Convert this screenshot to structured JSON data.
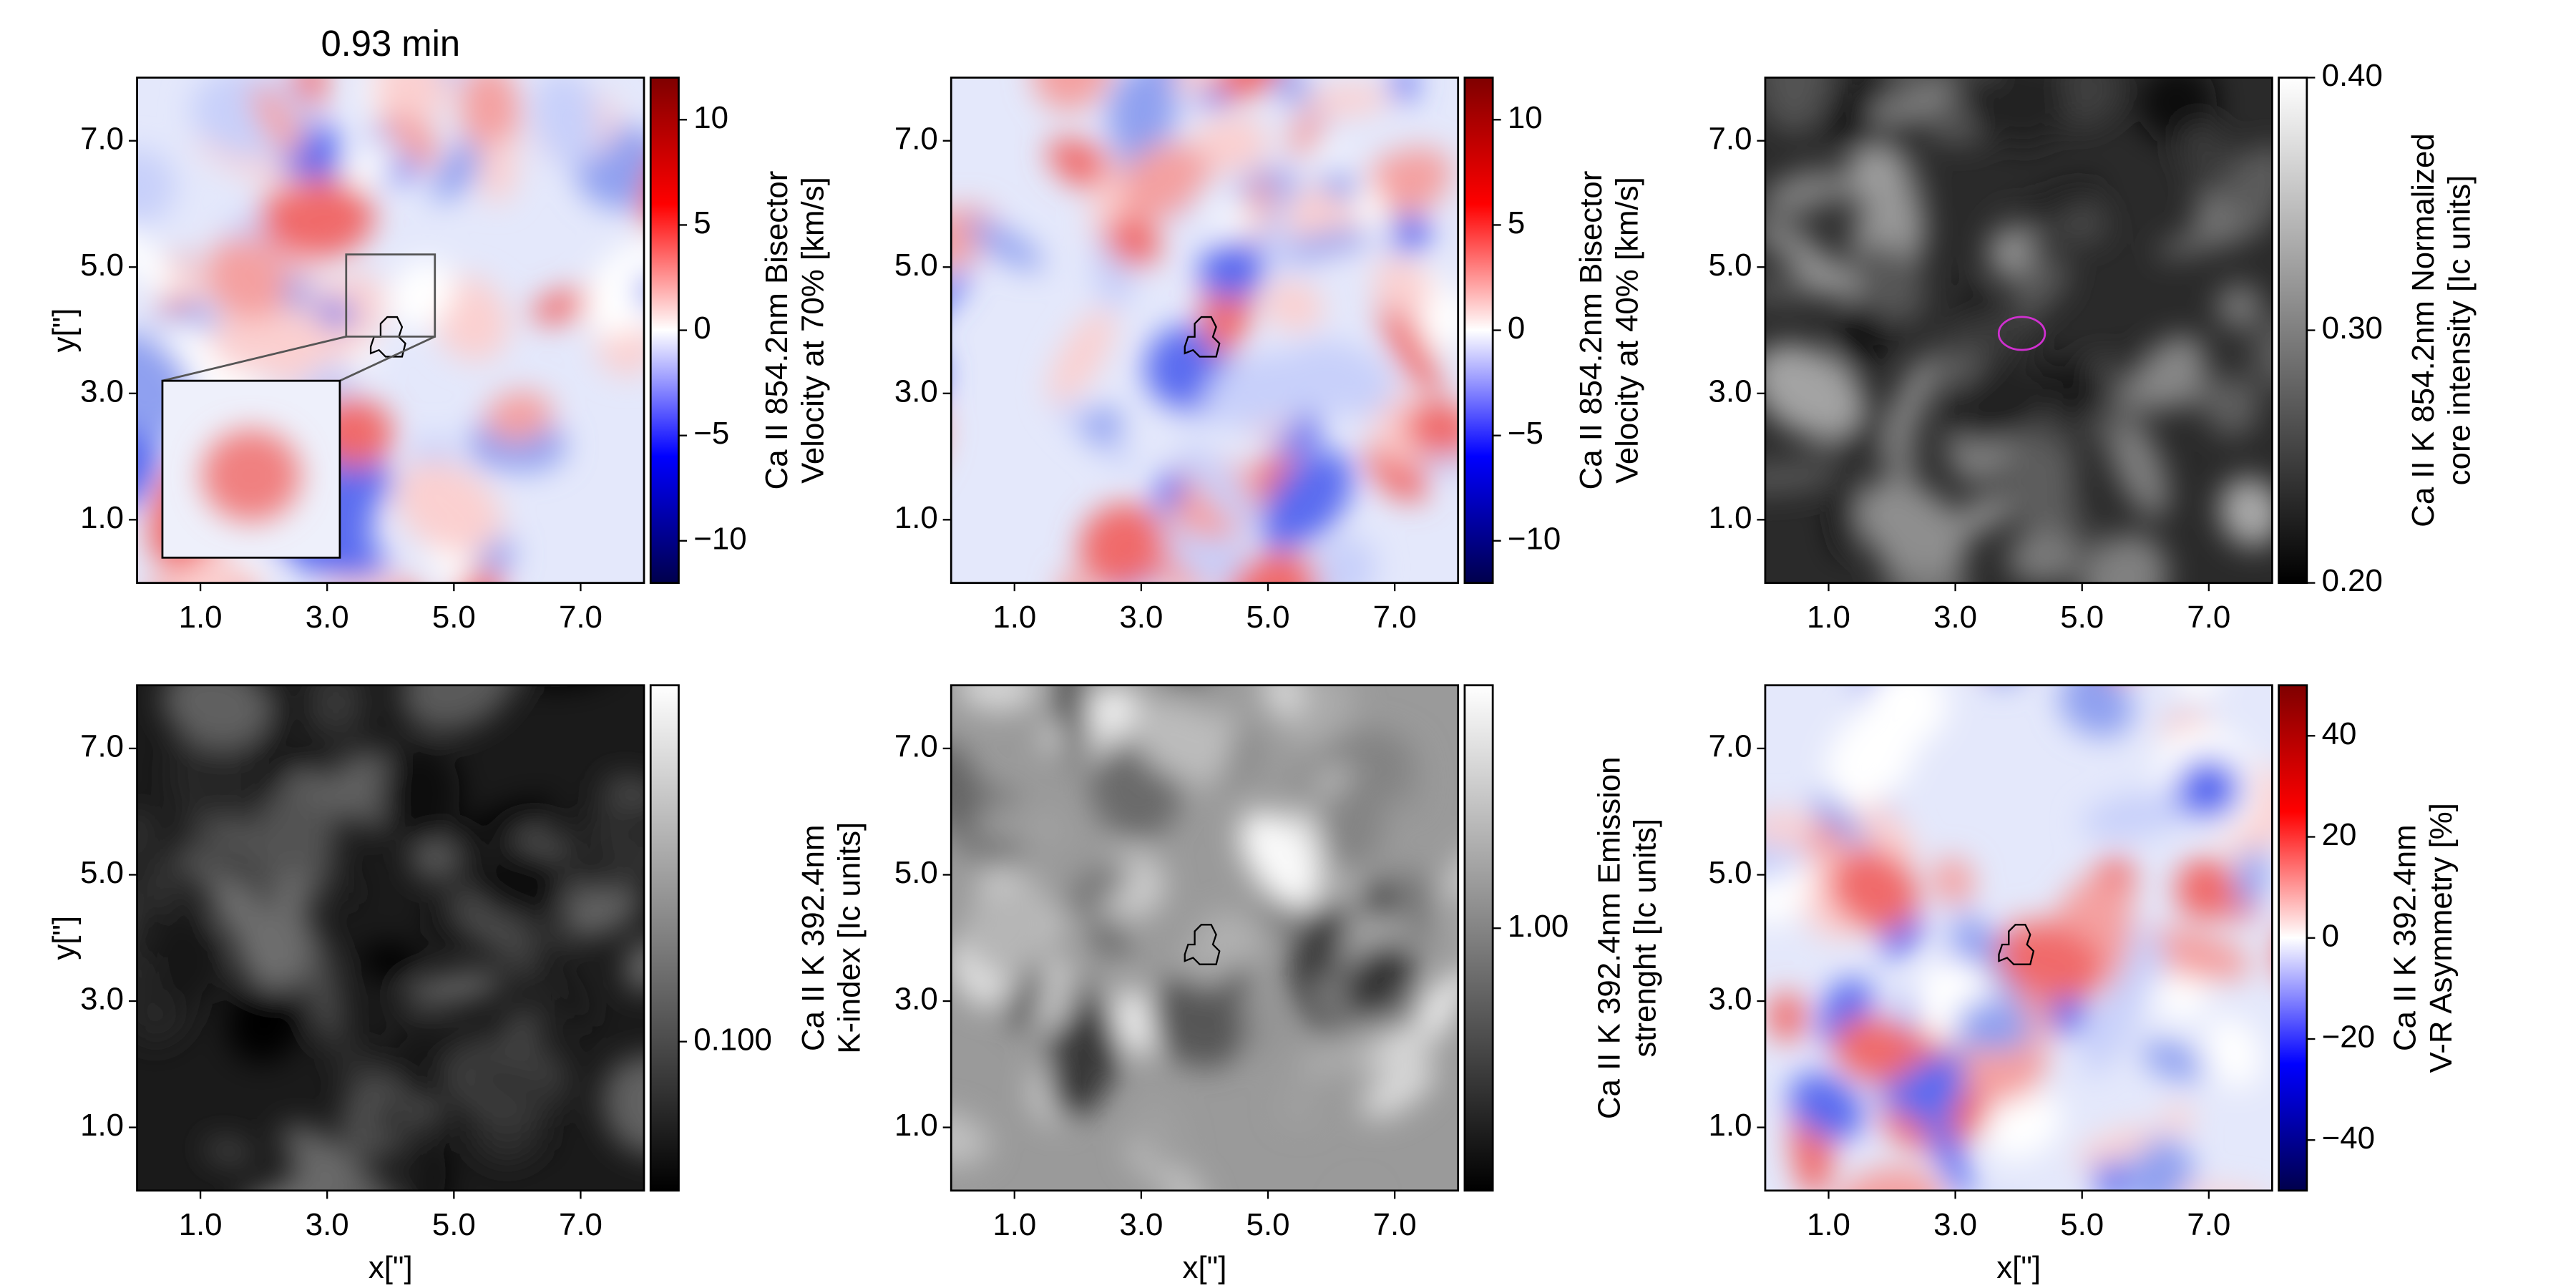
{
  "chart_data": [
    {
      "type": "heatmap",
      "title": "0.93 min",
      "ylabel": "y[\"]",
      "xlim": [
        0,
        8
      ],
      "ylim": [
        0,
        8
      ],
      "xticks": [
        {
          "value": 1,
          "label": "1.0"
        },
        {
          "value": 3,
          "label": "3.0"
        },
        {
          "value": 5,
          "label": "5.0"
        },
        {
          "value": 7,
          "label": "7.0"
        }
      ],
      "yticks": [
        {
          "value": 1,
          "label": "1.0"
        },
        {
          "value": 3,
          "label": "3.0"
        },
        {
          "value": 5,
          "label": "5.0"
        },
        {
          "value": 7,
          "label": "7.0"
        }
      ],
      "colormap": "seismic",
      "clim": [
        -12,
        12
      ],
      "cscale": "linear",
      "cticks": [
        {
          "value": -10,
          "label": "−10"
        },
        {
          "value": -5,
          "label": "−5"
        },
        0,
        5,
        10
      ],
      "clabel": [
        "Ca II 854.2nm Bisector",
        "Velocity at 70% [km/s]"
      ]
    },
    {
      "type": "heatmap",
      "xlim": [
        0,
        8
      ],
      "ylim": [
        0,
        8
      ],
      "xticks": [
        {
          "value": 1,
          "label": "1.0"
        },
        {
          "value": 3,
          "label": "3.0"
        },
        {
          "value": 5,
          "label": "5.0"
        },
        {
          "value": 7,
          "label": "7.0"
        }
      ],
      "yticks": [
        {
          "value": 1,
          "label": "1.0"
        },
        {
          "value": 3,
          "label": "3.0"
        },
        {
          "value": 5,
          "label": "5.0"
        },
        {
          "value": 7,
          "label": "7.0"
        }
      ],
      "colormap": "seismic",
      "clim": [
        -12,
        12
      ],
      "cscale": "linear",
      "cticks": [
        {
          "value": -10,
          "label": "−10"
        },
        {
          "value": -5,
          "label": "−5"
        },
        0,
        5,
        10
      ],
      "clabel": [
        "Ca II 854.2nm Bisector",
        "Velocity at 40% [km/s]"
      ]
    },
    {
      "type": "heatmap",
      "xlim": [
        0,
        8
      ],
      "ylim": [
        0,
        8
      ],
      "xticks": [
        {
          "value": 1,
          "label": "1.0"
        },
        {
          "value": 3,
          "label": "3.0"
        },
        {
          "value": 5,
          "label": "5.0"
        },
        {
          "value": 7,
          "label": "7.0"
        }
      ],
      "yticks": [
        {
          "value": 1,
          "label": "1.0"
        },
        {
          "value": 3,
          "label": "3.0"
        },
        {
          "value": 5,
          "label": "5.0"
        },
        {
          "value": 7,
          "label": "7.0"
        }
      ],
      "colormap": "gray",
      "clim": [
        0.2,
        0.4
      ],
      "cscale": "linear",
      "cticks": [
        {
          "value": 0.2,
          "label": "0.20"
        },
        {
          "value": 0.3,
          "label": "0.30"
        },
        {
          "value": 0.4,
          "label": "0.40"
        }
      ],
      "clabel": [
        "Ca II K 854.2nm Normalized",
        "core intensity [Ic units]"
      ]
    },
    {
      "type": "heatmap",
      "xlabel": "x[\"]",
      "ylabel": "y[\"]",
      "xlim": [
        0,
        8
      ],
      "ylim": [
        0,
        8
      ],
      "xticks": [
        {
          "value": 1,
          "label": "1.0"
        },
        {
          "value": 3,
          "label": "3.0"
        },
        {
          "value": 5,
          "label": "5.0"
        },
        {
          "value": 7,
          "label": "7.0"
        }
      ],
      "yticks": [
        {
          "value": 1,
          "label": "1.0"
        },
        {
          "value": 3,
          "label": "3.0"
        },
        {
          "value": 5,
          "label": "5.0"
        },
        {
          "value": 7,
          "label": "7.0"
        }
      ],
      "colormap": "gray",
      "clim": [
        0.05,
        0.525
      ],
      "cscale": "log",
      "cticks": [
        {
          "value": 0.1,
          "label": "0.100"
        }
      ],
      "clabel": [
        "Ca II K 392.4nm",
        "K-index [Ic units]"
      ]
    },
    {
      "type": "heatmap",
      "xlabel": "x[\"]",
      "xlim": [
        0,
        8
      ],
      "ylim": [
        0,
        8
      ],
      "xticks": [
        {
          "value": 1,
          "label": "1.0"
        },
        {
          "value": 3,
          "label": "3.0"
        },
        {
          "value": 5,
          "label": "5.0"
        },
        {
          "value": 7,
          "label": "7.0"
        }
      ],
      "yticks": [
        {
          "value": 1,
          "label": "1.0"
        },
        {
          "value": 3,
          "label": "3.0"
        },
        {
          "value": 5,
          "label": "5.0"
        },
        {
          "value": 7,
          "label": "7.0"
        }
      ],
      "colormap": "gray",
      "clim": [
        0.5,
        1.9
      ],
      "cscale": "log",
      "cticks": [
        {
          "value": 1,
          "label": "1.00"
        }
      ],
      "clabel": [
        "Ca II K 392.4nm Emission",
        "strenght [Ic units]"
      ]
    },
    {
      "type": "heatmap",
      "xlabel": "x[\"]",
      "xlim": [
        0,
        8
      ],
      "ylim": [
        0,
        8
      ],
      "xticks": [
        {
          "value": 1,
          "label": "1.0"
        },
        {
          "value": 3,
          "label": "3.0"
        },
        {
          "value": 5,
          "label": "5.0"
        },
        {
          "value": 7,
          "label": "7.0"
        }
      ],
      "yticks": [
        {
          "value": 1,
          "label": "1.0"
        },
        {
          "value": 3,
          "label": "3.0"
        },
        {
          "value": 5,
          "label": "5.0"
        },
        {
          "value": 7,
          "label": "7.0"
        }
      ],
      "colormap": "seismic",
      "clim": [
        -50,
        50
      ],
      "cscale": "linear",
      "cticks": [
        {
          "value": -40,
          "label": "−40"
        },
        {
          "value": -20,
          "label": "−20"
        },
        0,
        20,
        40
      ],
      "clabel": [
        "Ca II K 392.4nm",
        "V-R Asymmetry [%]"
      ]
    }
  ]
}
